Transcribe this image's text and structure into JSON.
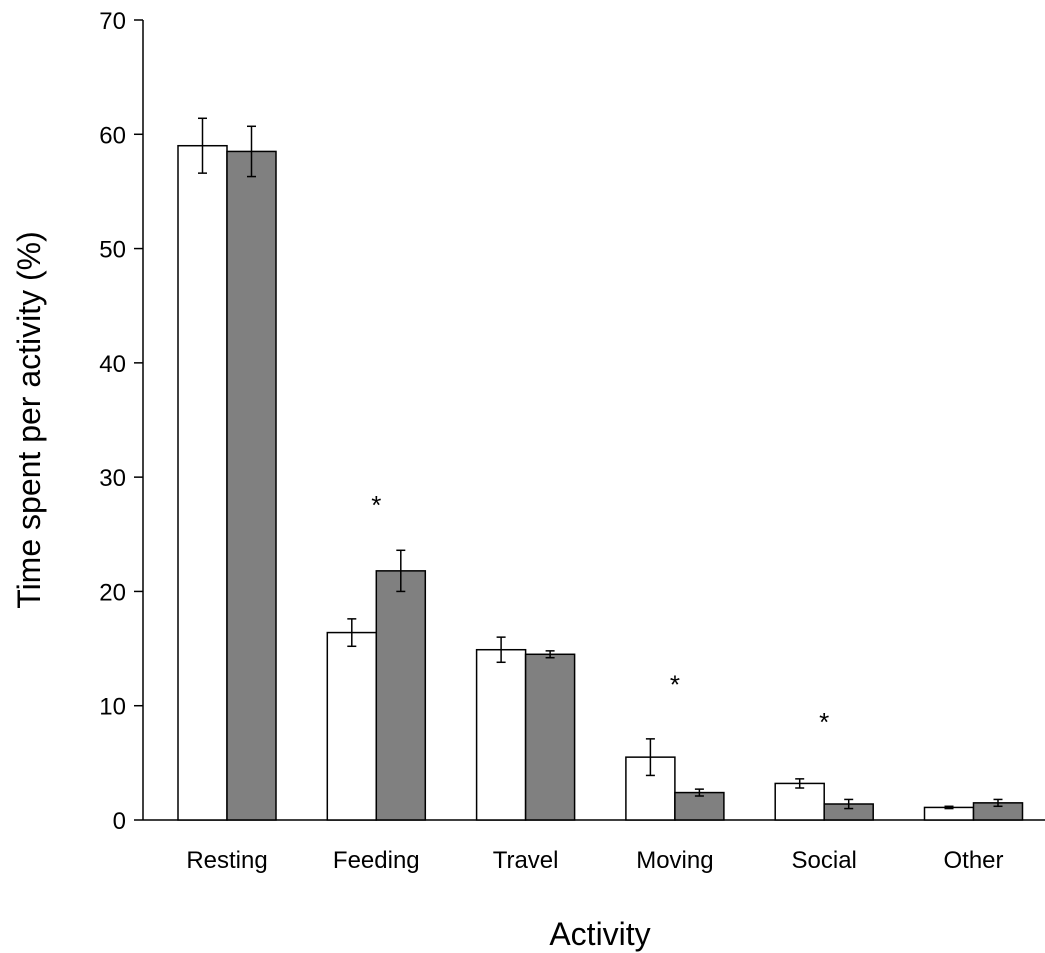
{
  "chart_data": {
    "type": "bar",
    "title": "",
    "xlabel": "Activity",
    "ylabel": "Time spent per activity (%)",
    "ylim": [
      0,
      70
    ],
    "yticks": [
      0,
      10,
      20,
      30,
      40,
      50,
      60,
      70
    ],
    "grid": false,
    "legend": "none",
    "categories": [
      "Resting",
      "Feeding",
      "Travel",
      "Moving",
      "Social",
      "Other"
    ],
    "series": [
      {
        "values": [
          59.0,
          16.4,
          14.9,
          5.5,
          3.2,
          1.1
        ],
        "errors": [
          2.4,
          1.2,
          1.1,
          1.6,
          0.4,
          0.1
        ],
        "color": "#ffffff"
      },
      {
        "values": [
          58.5,
          21.8,
          14.5,
          2.4,
          1.4,
          1.5
        ],
        "errors": [
          2.2,
          1.8,
          0.3,
          0.3,
          0.4,
          0.3
        ],
        "color": "#808080"
      }
    ],
    "annotations": [
      {
        "category": "Feeding",
        "text": "*",
        "y": 28
      },
      {
        "category": "Moving",
        "text": "*",
        "y": 12.3
      },
      {
        "category": "Social",
        "text": "*",
        "y": 9
      }
    ]
  }
}
